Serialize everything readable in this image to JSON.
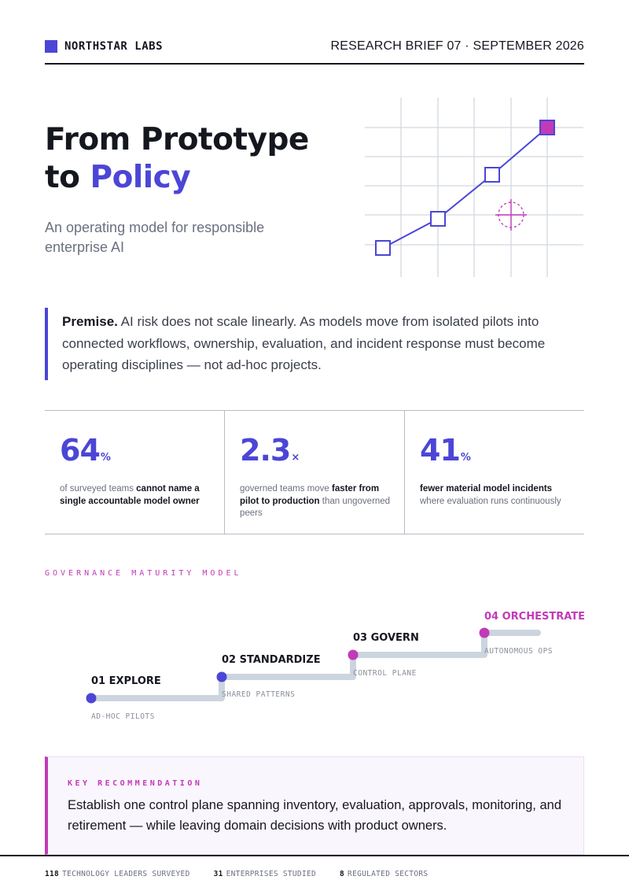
{
  "header": {
    "brand": "NORTHSTAR LABS",
    "brief": "RESEARCH BRIEF 07 · SEPTEMBER 2026"
  },
  "hero": {
    "title_line1": "From Prototype",
    "title_line2_prefix": "to ",
    "title_line2_accent": "Policy",
    "subtitle": "An operating model for responsible enterprise AI"
  },
  "premise": {
    "lead": "Premise.",
    "text": " AI risk does not scale linearly. As models move from isolated pilots into connected workflows, ownership, evaluation, and incident response must become operating disciplines — not ad-hoc projects."
  },
  "stats": [
    {
      "value": "64",
      "unit": "%",
      "pre": "of surveyed teams ",
      "bold": "cannot name a single accountable model owner",
      "post": ""
    },
    {
      "value": "2.3",
      "unit": "×",
      "pre": "governed teams move ",
      "bold": "faster from pilot to production",
      "post": " than ungoverned peers"
    },
    {
      "value": "41",
      "unit": "%",
      "pre": "",
      "bold": "fewer material model incidents",
      "post": " where evaluation runs continuously"
    }
  ],
  "maturity": {
    "label": "GOVERNANCE MATURITY MODEL",
    "steps": [
      {
        "title": "01 EXPLORE",
        "sub": "AD-HOC PILOTS"
      },
      {
        "title": "02 STANDARDIZE",
        "sub": "SHARED PATTERNS"
      },
      {
        "title": "03 GOVERN",
        "sub": "CONTROL PLANE"
      },
      {
        "title": "04 ORCHESTRATE",
        "sub": "AUTONOMOUS OPS"
      }
    ]
  },
  "recommendation": {
    "label": "KEY RECOMMENDATION",
    "text": "Establish one control plane spanning inventory, evaluation, approvals, monitoring, and retirement — while leaving domain decisions with product owners."
  },
  "footer": [
    {
      "num": "118",
      "label": "TECHNOLOGY LEADERS SURVEYED"
    },
    {
      "num": "31",
      "label": "ENTERPRISES STUDIED"
    },
    {
      "num": "8",
      "label": "REGULATED SECTORS"
    }
  ],
  "colors": {
    "accent": "#4b46d6",
    "highlight": "#c23ab7",
    "ink": "#15171f"
  }
}
